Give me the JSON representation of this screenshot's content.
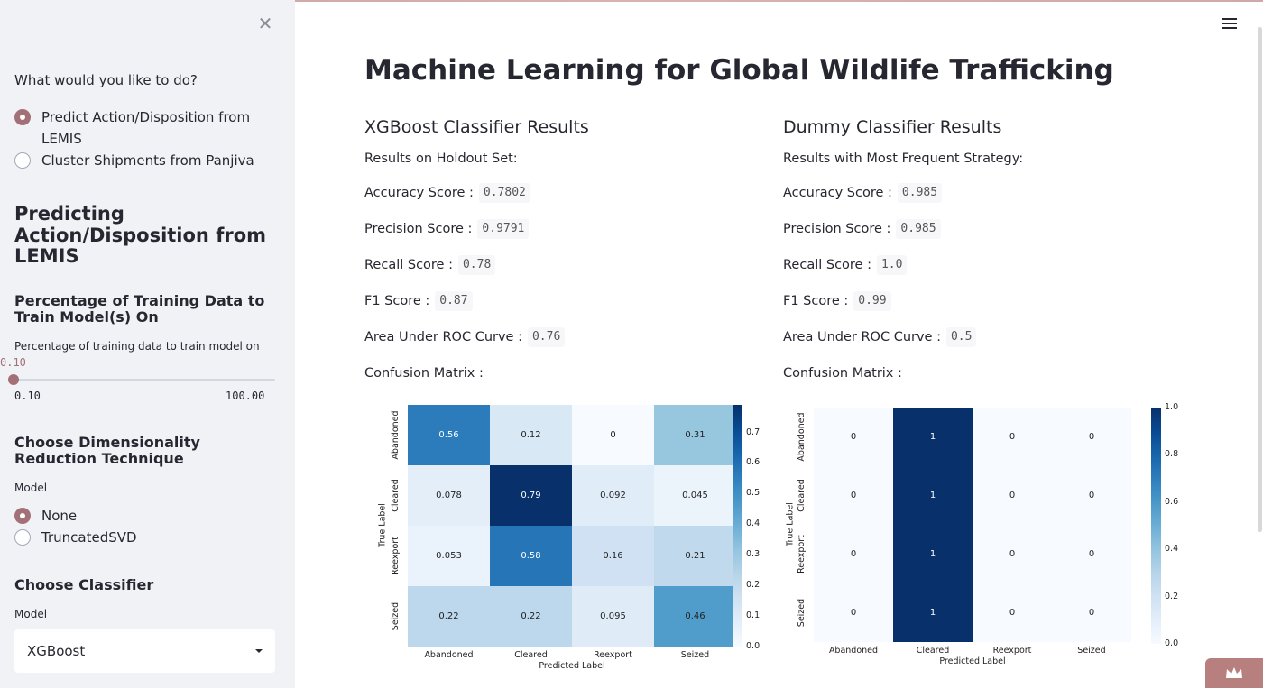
{
  "sidebar": {
    "question": "What would you like to do?",
    "options": [
      {
        "label": "Predict Action/Disposition from LEMIS",
        "selected": true
      },
      {
        "label": "Cluster Shipments from Panjiva",
        "selected": false
      }
    ],
    "section_title": "Predicting Action/Disposition from LEMIS",
    "training_header": "Percentage of Training Data to Train Model(s) On",
    "slider": {
      "label": "Percentage of training data to train model on",
      "value": "0.10",
      "min": "0.10",
      "max": "100.00"
    },
    "dimred_header": "Choose Dimensionality Reduction Technique",
    "dimred_model_label": "Model",
    "dimred_options": [
      {
        "label": "None",
        "selected": true
      },
      {
        "label": "TruncatedSVD",
        "selected": false
      }
    ],
    "classifier_header": "Choose Classifier",
    "classifier_model_label": "Model",
    "classifier_value": "XGBoost"
  },
  "main": {
    "title": "Machine Learning for Global Wildlife Trafficking",
    "xgb": {
      "header": "XGBoost Classifier Results",
      "subtitle": "Results on Holdout Set:",
      "metrics": [
        {
          "label": "Accuracy Score :",
          "value": "0.7802"
        },
        {
          "label": "Precision Score :",
          "value": "0.9791"
        },
        {
          "label": "Recall Score :",
          "value": "0.78"
        },
        {
          "label": "F1 Score :",
          "value": "0.87"
        },
        {
          "label": "Area Under ROC Curve :",
          "value": "0.76"
        }
      ],
      "cm_label": "Confusion Matrix :"
    },
    "dummy": {
      "header": "Dummy Classifier Results",
      "subtitle": "Results with Most Frequent Strategy:",
      "metrics": [
        {
          "label": "Accuracy Score :",
          "value": "0.985"
        },
        {
          "label": "Precision Score :",
          "value": "0.985"
        },
        {
          "label": "Recall Score :",
          "value": "1.0"
        },
        {
          "label": "F1 Score :",
          "value": "0.99"
        },
        {
          "label": "Area Under ROC Curve :",
          "value": "0.5"
        }
      ],
      "cm_label": "Confusion Matrix :"
    }
  },
  "chart_data": [
    {
      "type": "heatmap",
      "title": "",
      "xlabel": "Predicted Label",
      "ylabel": "True Label",
      "categories": [
        "Abandoned",
        "Cleared",
        "Reexport",
        "Seized"
      ],
      "values": [
        [
          "0.56",
          "0.12",
          "0",
          "0.31"
        ],
        [
          "0.078",
          "0.79",
          "0.092",
          "0.045"
        ],
        [
          "0.053",
          "0.58",
          "0.16",
          "0.21"
        ],
        [
          "0.22",
          "0.22",
          "0.095",
          "0.46"
        ]
      ],
      "colorbar_ticks": [
        "0.7",
        "0.6",
        "0.5",
        "0.4",
        "0.3",
        "0.2",
        "0.1",
        "0.0"
      ],
      "vmax": 0.79
    },
    {
      "type": "heatmap",
      "title": "",
      "xlabel": "Predicted Label",
      "ylabel": "True Label",
      "categories": [
        "Abandoned",
        "Cleared",
        "Reexport",
        "Seized"
      ],
      "values": [
        [
          "0",
          "1",
          "0",
          "0"
        ],
        [
          "0",
          "1",
          "0",
          "0"
        ],
        [
          "0",
          "1",
          "0",
          "0"
        ],
        [
          "0",
          "1",
          "0",
          "0"
        ]
      ],
      "colorbar_ticks": [
        "1.0",
        "0.8",
        "0.6",
        "0.4",
        "0.2",
        "0.0"
      ],
      "vmax": 1.0
    }
  ]
}
